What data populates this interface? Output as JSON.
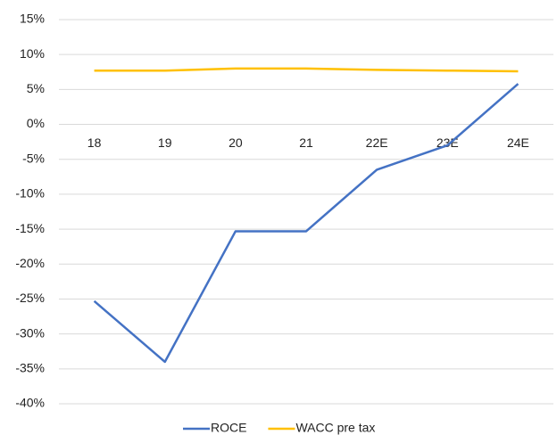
{
  "chart_data": {
    "type": "line",
    "categories": [
      "18",
      "19",
      "20",
      "21",
      "22E",
      "23E",
      "24E"
    ],
    "series": [
      {
        "name": "ROCE",
        "color": "#4472c4",
        "values": [
          -25.3,
          -34,
          -15.3,
          -15.3,
          -6.5,
          -3,
          5.8
        ]
      },
      {
        "name": "WACC pre tax",
        "color": "#ffc000",
        "values": [
          7.7,
          7.7,
          8,
          8,
          7.8,
          7.7,
          7.6
        ]
      }
    ],
    "ylim": [
      -40,
      15
    ],
    "yticks": [
      {
        "value": -40,
        "label": "-40%"
      },
      {
        "value": -35,
        "label": "-35%"
      },
      {
        "value": -30,
        "label": "-30%"
      },
      {
        "value": -25,
        "label": "-25%"
      },
      {
        "value": -20,
        "label": "-20%"
      },
      {
        "value": -15,
        "label": "-15%"
      },
      {
        "value": -10,
        "label": "-10%"
      },
      {
        "value": -5,
        "label": "-5%"
      },
      {
        "value": 0,
        "label": "0%"
      },
      {
        "value": 5,
        "label": "5%"
      },
      {
        "value": 10,
        "label": "10%"
      },
      {
        "value": 15,
        "label": "15%"
      }
    ],
    "grid": true,
    "legend": "bottom"
  }
}
